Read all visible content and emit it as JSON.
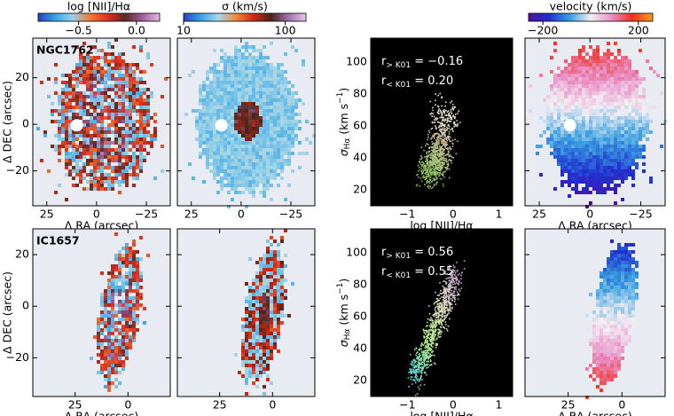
{
  "colorbars": [
    {
      "label": "log [NII]/Hα",
      "lim": [
        -0.85,
        0.2
      ],
      "log": false,
      "ticks": [
        {
          "value": -0.5,
          "label": "−0.5"
        },
        {
          "value": 0,
          "label": "0.0"
        }
      ],
      "colors": [
        "#2a3fc0",
        "#3aa6e6",
        "#9ad0e8",
        "#f07a30",
        "#e03020",
        "#5a2a20",
        "#a060a0",
        "#e6b8e6"
      ]
    },
    {
      "label": "σ (km/s)",
      "lim": [
        10,
        160
      ],
      "log": true,
      "ticks": [
        10,
        100
      ],
      "colors": [
        "#2a3fc0",
        "#3aa6e6",
        "#a8d8e8",
        "#f08a40",
        "#d02818",
        "#4a2418",
        "#a070b0",
        "#e8c8ee"
      ]
    },
    {
      "label": "velocity (km/s)",
      "lim": [
        -260,
        260
      ],
      "log": false,
      "ticks": [
        {
          "value": -200,
          "label": "−200"
        },
        200
      ],
      "colors": [
        "#5010a0",
        "#2030d0",
        "#3aa0e0",
        "#f4f0f4",
        "#e890c8",
        "#f03020",
        "#f0a020"
      ]
    }
  ],
  "ra_label": "Δ RA (arcsec)",
  "dec_label": "Δ DEC (arcsec)",
  "scatter_xlabel": "log [NII]/Hα",
  "scatter_ylabel": {
    "symbol": "σ",
    "subscript": "Hα",
    "unit": " (km s",
    "exponent": "−1",
    "close": ")"
  },
  "scatter_xlim": [
    -1.8,
    1.3
  ],
  "scatter_xticks": [
    {
      "value": -1,
      "label": "−1"
    },
    0,
    1
  ],
  "scatter_ylim": [
    10,
    115
  ],
  "scatter_yticks": [
    20,
    40,
    60,
    80,
    100
  ],
  "rows": [
    {
      "name": "NGC1762",
      "xlim": [
        32,
        -37
      ],
      "xticks": [
        25,
        0,
        {
          "value": -25,
          "label": "−25"
        }
      ],
      "ylim": [
        -35,
        37
      ],
      "yticks": [
        {
          "value": -20,
          "label": "−20"
        },
        0,
        20
      ],
      "annotations": [
        {
          "symbol": "r",
          "subscript": "> K01",
          "text": " = −0.16"
        },
        {
          "symbol": "r",
          "subscript": "< K01",
          "text": " = 0.20"
        }
      ]
    },
    {
      "name": "IC1657",
      "xlim": [
        45,
        -20
      ],
      "xticks": [
        25,
        0
      ],
      "ylim": [
        -35,
        30
      ],
      "yticks": [
        {
          "value": -20,
          "label": "−20"
        },
        0,
        20
      ],
      "annotations": [
        {
          "symbol": "r",
          "subscript": "> K01",
          "text": " = 0.56"
        },
        {
          "symbol": "r",
          "subscript": "< K01",
          "text": " = 0.55"
        }
      ]
    }
  ]
}
